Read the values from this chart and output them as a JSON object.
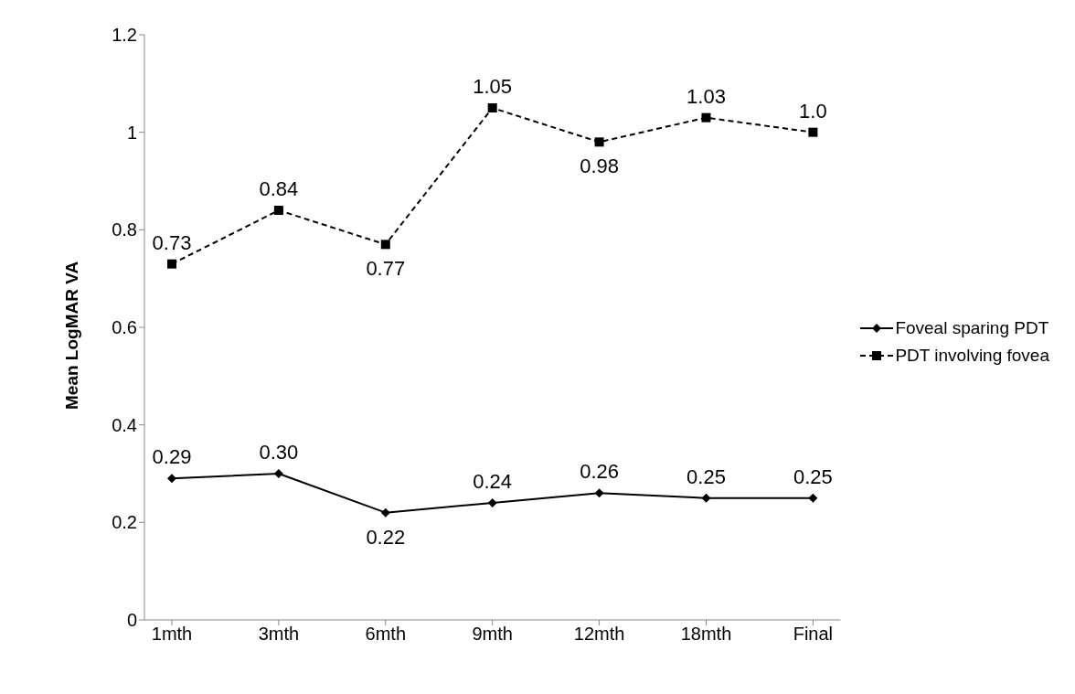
{
  "chart_data": {
    "type": "line",
    "ylabel": "Mean LogMAR VA",
    "categories": [
      "1mth",
      "3mth",
      "6mth",
      "9mth",
      "12mth",
      "18mth",
      "Final"
    ],
    "series": [
      {
        "name": "Foveal sparing PDT",
        "color": "#000000",
        "marker": "diamond",
        "line_style": "solid",
        "values": [
          0.29,
          0.3,
          0.22,
          0.24,
          0.26,
          0.25,
          0.25
        ],
        "value_labels": [
          "0.29",
          "0.30",
          "0.22",
          "0.24",
          "0.26",
          "0.25",
          "0.25"
        ]
      },
      {
        "name": "PDT involving fovea",
        "color": "#000000",
        "marker": "square",
        "line_style": "dashed",
        "values": [
          0.73,
          0.84,
          0.77,
          1.05,
          0.98,
          1.03,
          1.0
        ],
        "value_labels": [
          "0.73",
          "0.84",
          "0.77",
          "1.05",
          "0.98",
          "1.03",
          "1.0"
        ]
      }
    ],
    "ylim": [
      0,
      1.2
    ],
    "yticks": [
      0,
      0.2,
      0.4,
      0.6,
      0.8,
      1,
      1.2
    ],
    "grid": false,
    "legend": "right"
  }
}
